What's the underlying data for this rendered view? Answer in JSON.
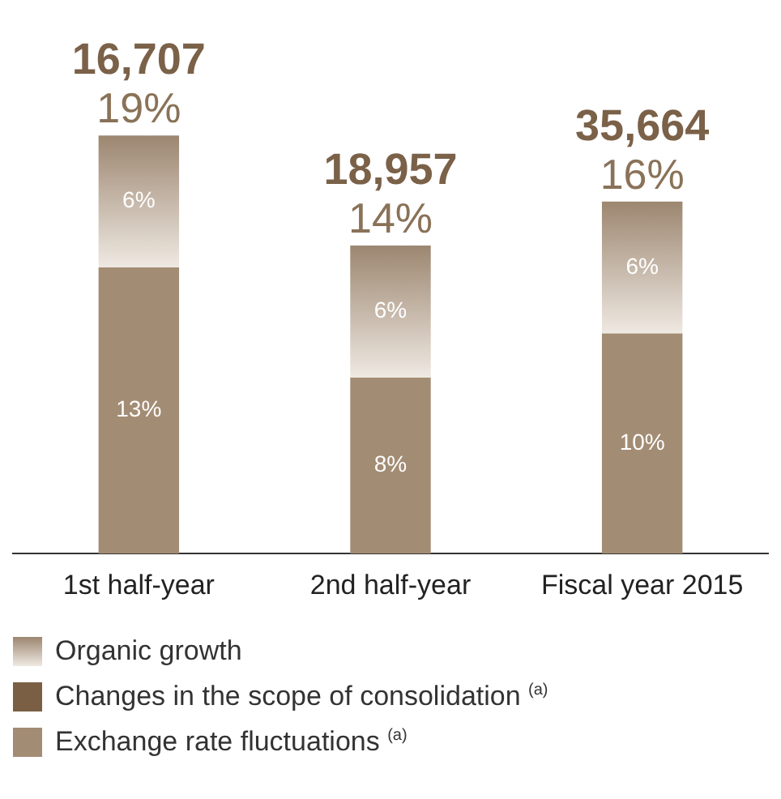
{
  "chart_data": {
    "type": "bar",
    "stacked": true,
    "categories": [
      "1st half-year",
      "2nd half-year",
      "Fiscal year 2015"
    ],
    "series": [
      {
        "name": "Exchange rate fluctuations $^{(a)}$",
        "color": "#a38c74",
        "values": [
          13,
          8,
          10
        ],
        "value_labels": [
          "13%",
          "8%",
          "10%"
        ]
      },
      {
        "name": "Changes in the scope of consolidation $^{(a)}$",
        "color": "#7a5f44",
        "values": [
          null,
          null,
          null
        ]
      },
      {
        "name": "Organic growth",
        "color": "#9c8670",
        "values": [
          6,
          6,
          6
        ],
        "value_labels": [
          "6%",
          "6%",
          "6%"
        ]
      }
    ],
    "totals": [
      "19%",
      "14%",
      "16%"
    ],
    "annotations": [
      "16,707",
      "18,957",
      "35,664"
    ],
    "tick_labels": "x",
    "grid": false,
    "legend": "bottom"
  }
}
